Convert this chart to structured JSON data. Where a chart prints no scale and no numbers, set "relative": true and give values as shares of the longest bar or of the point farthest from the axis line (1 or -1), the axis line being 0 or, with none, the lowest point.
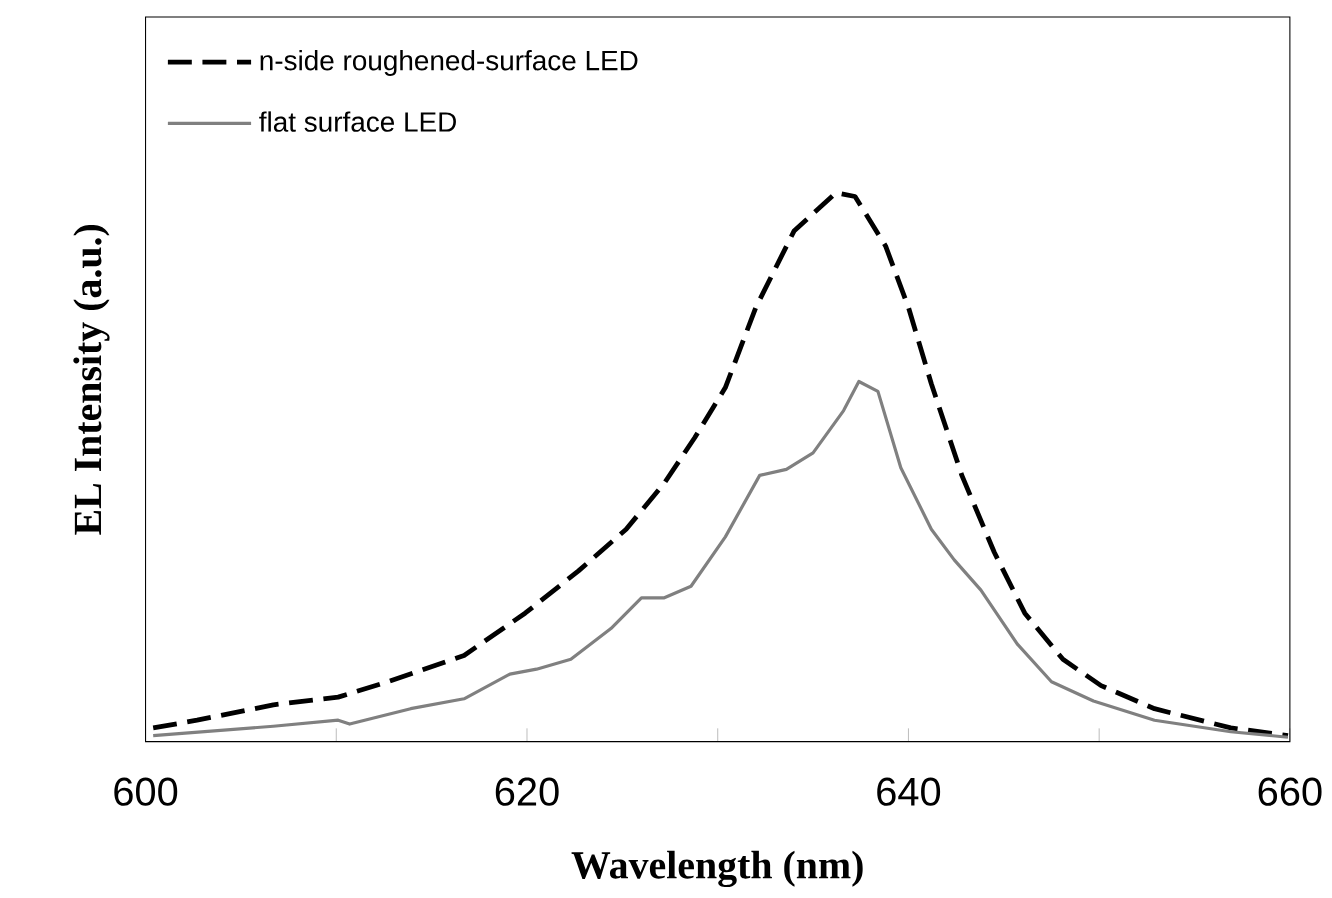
{
  "chart_data": {
    "type": "line",
    "xlabel": "Wavelength (nm)",
    "ylabel": "EL Intensity (a.u.)",
    "relative": true,
    "xlim": [
      600,
      660
    ],
    "xticks": [
      600,
      {
        "value": 610,
        "label": null
      },
      620,
      {
        "value": 630,
        "label": null
      },
      640,
      {
        "value": 650,
        "label": null
      },
      660
    ],
    "legend": "top left",
    "grid": false,
    "marker": "none",
    "series": [
      {
        "name": "n-side  roughened-surface  LED",
        "color": "#000000",
        "line_style": "dashed",
        "x": [
          600.4,
          602.7,
          606.7,
          610.1,
          612.7,
          616.7,
          619.9,
          622.7,
          625.2,
          627.2,
          628.8,
          630.4,
          632.0,
          634.0,
          636.2,
          637.2,
          638.8,
          640.0,
          641.2,
          642.8,
          644.5,
          646.1,
          648.1,
          650.1,
          652.9,
          656.9,
          659.9
        ],
        "values": [
          0.025,
          0.039,
          0.067,
          0.081,
          0.109,
          0.157,
          0.234,
          0.311,
          0.387,
          0.471,
          0.554,
          0.645,
          0.791,
          0.93,
          1.0,
          0.993,
          0.903,
          0.791,
          0.652,
          0.485,
          0.345,
          0.234,
          0.15,
          0.102,
          0.06,
          0.025,
          0.011
        ]
      },
      {
        "name": "flat surface LED",
        "color": "#808080",
        "line_style": "solid",
        "x": [
          600.4,
          606.7,
          610.1,
          610.7,
          613.9,
          616.7,
          619.1,
          620.5,
          622.3,
          624.4,
          626.0,
          627.2,
          628.6,
          630.4,
          632.2,
          633.6,
          635.0,
          636.6,
          637.4,
          638.4,
          639.6,
          641.2,
          642.4,
          643.8,
          645.7,
          647.5,
          649.7,
          652.9,
          656.9,
          659.9
        ],
        "values": [
          0.011,
          0.028,
          0.039,
          0.032,
          0.06,
          0.078,
          0.123,
          0.132,
          0.15,
          0.206,
          0.262,
          0.262,
          0.283,
          0.373,
          0.485,
          0.496,
          0.526,
          0.603,
          0.656,
          0.638,
          0.499,
          0.387,
          0.331,
          0.276,
          0.178,
          0.109,
          0.074,
          0.039,
          0.018,
          0.008
        ]
      }
    ]
  }
}
